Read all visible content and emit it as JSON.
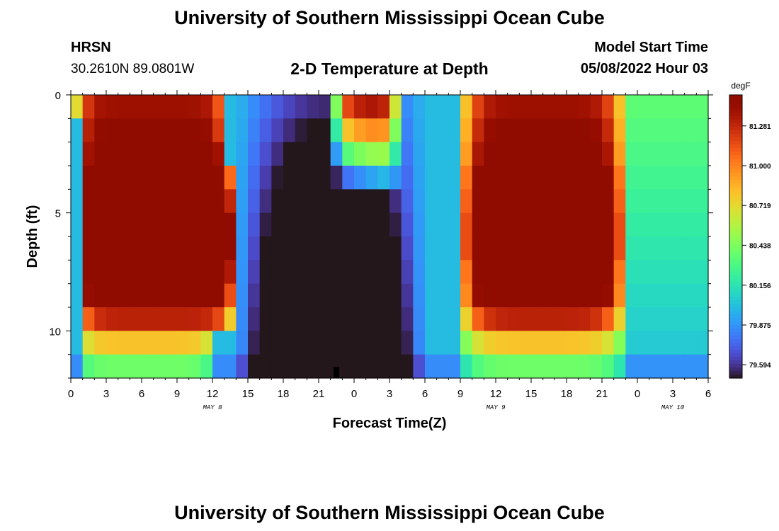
{
  "header": {
    "title": "University of Southern Mississippi Ocean Cube",
    "station": "HRSN",
    "coords": "30.2610N  89.0801W",
    "subtitle": "2-D Temperature at Depth",
    "start_label": "Model Start Time",
    "start_value": "05/08/2022 Hour 03",
    "footer_title": "University of Southern Mississippi Ocean Cube"
  },
  "chart_data": {
    "type": "heatmap",
    "title": "2-D Temperature at Depth",
    "xlabel": "Forecast Time(Z)",
    "ylabel": "Depth (ft)",
    "x_hours_range": [
      0,
      54
    ],
    "y_range": [
      0,
      12
    ],
    "x_ticks": [
      "0",
      "3",
      "6",
      "9",
      "12",
      "15",
      "18",
      "21",
      "0",
      "3",
      "6",
      "9",
      "12",
      "15",
      "18",
      "21",
      "0",
      "3",
      "6"
    ],
    "y_ticks": [
      "0",
      "5",
      "10"
    ],
    "date_labels": [
      {
        "label": "MAY 8",
        "hour": 12
      },
      {
        "label": "MAY 9",
        "hour": 36
      },
      {
        "label": "MAY 10",
        "hour": 51
      }
    ],
    "colorbar": {
      "unit": "degF",
      "ticks": [
        "81.281",
        "81.000",
        "80.719",
        "80.438",
        "80.156",
        "79.875",
        "79.594"
      ],
      "tick_values": [
        81.281,
        81.0,
        80.719,
        80.438,
        80.156,
        79.875,
        79.594
      ],
      "min": 79.5,
      "max": 81.5
    },
    "grid_shape": {
      "hours": 54,
      "depth_layers": 12
    }
  }
}
